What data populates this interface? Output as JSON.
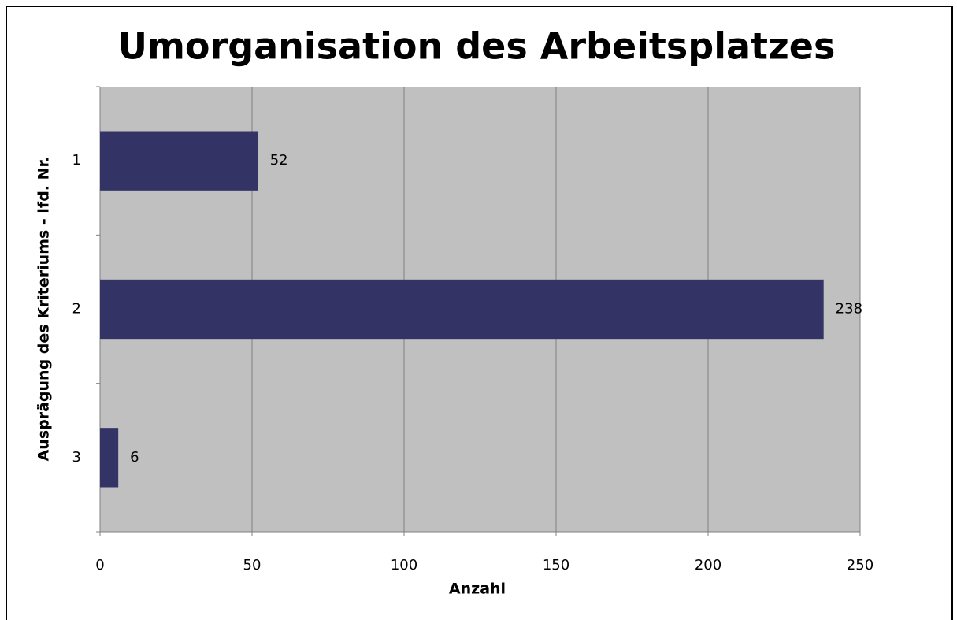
{
  "chart_data": {
    "type": "bar",
    "orientation": "horizontal",
    "title": "Umorganisation des Arbeitsplatzes",
    "x_label": "Anzahl",
    "y_label": "Ausprägung des Kriteriums - lfd. Nr.",
    "categories": [
      "1",
      "2",
      "3"
    ],
    "values": [
      52,
      238,
      6
    ],
    "color": "#333366",
    "xlim": [
      0,
      250
    ],
    "xticks": [
      0,
      50,
      100,
      150,
      200,
      250
    ],
    "grid": true
  }
}
